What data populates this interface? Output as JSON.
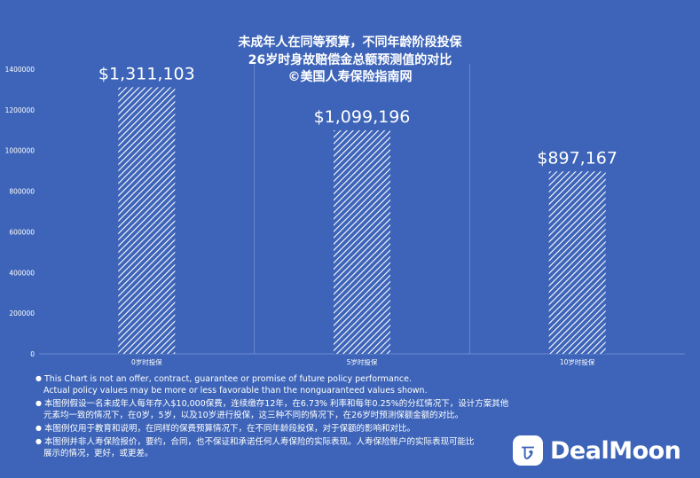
{
  "chart_data": {
    "type": "bar",
    "title_lines": [
      "未成年人在同等预算，不同年龄阶段投保",
      "26岁时身故赔偿金总额预测值的对比",
      "©美国人寿保险指南网"
    ],
    "categories": [
      "0岁时投保",
      "5岁时投保",
      "10岁时投保"
    ],
    "values": [
      1311103,
      1099196,
      897167
    ],
    "data_labels": [
      "$1,311,103",
      "$1,099,196",
      "$897,167"
    ],
    "ylim": [
      0,
      1400000
    ],
    "yticks": [
      0,
      200000,
      400000,
      600000,
      800000,
      1000000,
      1200000,
      1400000
    ],
    "ytick_labels": [
      "0",
      "200000",
      "400000",
      "600000",
      "800000",
      "1000000",
      "1200000",
      "1400000"
    ],
    "grid": "vertical",
    "colors": {
      "background": "#3d64b8",
      "bar_hatch": "#ffffff",
      "grid": "#6c8bd0"
    }
  },
  "notes": [
    {
      "lines": [
        "This Chart is not an offer, contract, guarantee or promise of future policy performance.",
        "Actual policy values may be more or less favorable than the nonguaranteed values shown."
      ]
    },
    {
      "lines": [
        "本图例假设一名未成年人每年存入$10,000保费，连续缴存12年，在6.73% 利率和每年0.25%的分红情况下，设计方案其他",
        "元素均一致的情况下，在0岁，5岁，以及10岁进行投保，这三种不同的情况下，在26岁时预测保额金额的对比。"
      ]
    },
    {
      "lines": [
        "本图例仅用于教育和说明，在同样的保费预算情况下，在不同年龄段投保，对于保额的影响和对比。"
      ]
    },
    {
      "lines": [
        "本图例并非人寿保险报价，要约，合同，也不保证和承诺任何人寿保险的实际表现。人寿保险账户的实际表现可能比",
        "展示的情况，更好，或更差。"
      ]
    }
  ],
  "logo": {
    "text": "DealMoon",
    "icon": "dealmoon-logo-icon"
  }
}
